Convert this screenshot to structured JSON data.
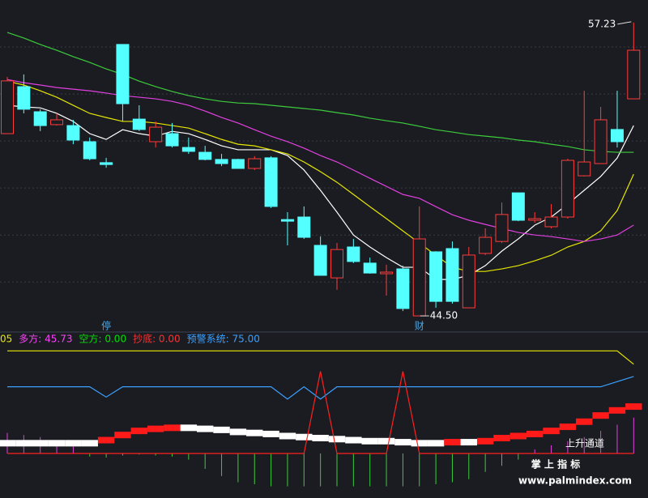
{
  "chart_data": [
    {
      "type": "candlestick",
      "open": [
        52.41,
        54.45,
        53.36,
        52.8,
        52.76,
        52.06,
        51.15,
        56.28,
        53.04,
        52.06,
        52.41,
        51.81,
        51.6,
        51.29,
        51.29,
        50.9,
        51.36,
        48.68,
        48.79,
        47.56,
        46.15,
        47.49,
        46.79,
        46.33,
        46.54,
        44.5,
        47.28,
        47.42,
        44.85,
        47.21,
        47.73,
        49.84,
        48.65,
        48.37,
        48.79,
        50.58,
        51.11,
        52.59,
        53.92
      ],
      "high": [
        54.87,
        54.98,
        53.47,
        53.29,
        53.01,
        52.24,
        51.36,
        56.28,
        53.64,
        52.94,
        52.87,
        52.24,
        51.88,
        51.53,
        51.32,
        51.43,
        51.43,
        49.0,
        49.25,
        47.95,
        47.66,
        47.84,
        47.03,
        46.72,
        46.68,
        49.25,
        47.31,
        47.73,
        47.49,
        48.3,
        49.42,
        49.84,
        49.0,
        49.35,
        51.32,
        54.27,
        53.57,
        54.27,
        57.23
      ],
      "low": [
        52.41,
        53.29,
        52.52,
        52.76,
        51.95,
        51.25,
        50.93,
        52.94,
        52.52,
        51.81,
        51.81,
        51.53,
        51.25,
        51.0,
        50.9,
        50.83,
        49.18,
        47.56,
        47.84,
        46.26,
        45.63,
        46.79,
        46.33,
        45.38,
        44.71,
        44.5,
        44.85,
        45.03,
        44.85,
        47.14,
        47.66,
        48.61,
        48.54,
        48.3,
        48.72,
        50.55,
        51.11,
        51.81,
        53.92
      ],
      "close": [
        54.7,
        53.47,
        52.76,
        53.01,
        52.13,
        51.32,
        51.07,
        53.71,
        52.59,
        52.69,
        51.88,
        51.64,
        51.29,
        51.11,
        50.9,
        51.32,
        49.25,
        48.61,
        47.91,
        46.26,
        47.38,
        46.86,
        46.36,
        46.4,
        44.82,
        47.84,
        45.13,
        45.13,
        47.14,
        47.91,
        48.9,
        48.65,
        48.72,
        48.79,
        51.25,
        51.18,
        53.01,
        52.06,
        56.03
      ],
      "up_color": "#ff3b3b",
      "down_color": "#54ffff",
      "series": [
        {
          "color": "#ffffff",
          "values": [
            53.64,
            53.57,
            53.53,
            53.29,
            52.94,
            52.41,
            52.16,
            52.58,
            52.41,
            52.3,
            52.51,
            52.41,
            52.16,
            51.88,
            51.71,
            51.71,
            51.71,
            51.46,
            50.83,
            49.95,
            49.0,
            48.01,
            47.49,
            47.03,
            46.61,
            46.61,
            46.08,
            46.08,
            46.26,
            46.68,
            47.31,
            47.84,
            48.44,
            48.79,
            49.35,
            49.95,
            50.55,
            51.35,
            52.76
          ]
        },
        {
          "color": "#e6e600",
          "values": [
            54.69,
            54.52,
            54.27,
            53.99,
            53.64,
            53.29,
            53.11,
            52.94,
            52.94,
            52.87,
            52.76,
            52.65,
            52.41,
            52.16,
            51.95,
            51.88,
            51.71,
            51.53,
            51.18,
            50.76,
            50.3,
            49.77,
            49.24,
            48.72,
            48.19,
            47.66,
            47.13,
            46.61,
            46.43,
            46.43,
            46.54,
            46.68,
            46.89,
            47.13,
            47.49,
            47.73,
            48.19,
            49.07,
            50.65
          ]
        },
        {
          "color": "#e040e0",
          "values": [
            54.76,
            54.62,
            54.52,
            54.41,
            54.34,
            54.27,
            54.17,
            54.06,
            53.99,
            53.92,
            53.81,
            53.64,
            53.39,
            53.11,
            52.87,
            52.58,
            52.3,
            52.06,
            51.78,
            51.46,
            51.18,
            50.83,
            50.47,
            50.12,
            49.77,
            49.6,
            49.24,
            48.89,
            48.65,
            48.47,
            48.29,
            48.12,
            48.01,
            47.94,
            47.84,
            47.73,
            47.84,
            48.01,
            48.44
          ]
        },
        {
          "color": "#3ccc3c",
          "values": [
            56.8,
            56.56,
            56.28,
            56.03,
            55.75,
            55.5,
            55.22,
            54.98,
            54.69,
            54.45,
            54.24,
            54.06,
            53.92,
            53.81,
            53.74,
            53.71,
            53.64,
            53.57,
            53.5,
            53.43,
            53.32,
            53.22,
            53.08,
            52.97,
            52.87,
            52.73,
            52.58,
            52.48,
            52.37,
            52.3,
            52.23,
            52.13,
            52.06,
            51.95,
            51.85,
            51.71,
            51.64,
            51.6,
            51.6
          ]
        }
      ],
      "ylim": [
        43.8,
        58.21
      ],
      "grid_levels": [
        56.17,
        54.13,
        52.09,
        50.05,
        48.01,
        45.97
      ],
      "annotations": [
        "57.23",
        "44.50"
      ],
      "markers": [
        {
          "label": "停",
          "at": 6
        },
        {
          "label": "财",
          "at": 25
        }
      ]
    },
    {
      "type": "indicator",
      "legend": [
        {
          "text": "05",
          "color": "#e6e600"
        },
        {
          "text": "多方: 45.73",
          "color": "#ff40ff"
        },
        {
          "text": "空方: 0.00",
          "color": "#00e000"
        },
        {
          "text": "抄底: 0.00",
          "color": "#ff3030"
        },
        {
          "text": "预警系统: 75.00",
          "color": "#3aa0ff"
        }
      ],
      "lines": [
        {
          "color": "#e6e600",
          "values": [
            100,
            100,
            100,
            100,
            100,
            100,
            100,
            100,
            100,
            100,
            100,
            100,
            100,
            100,
            100,
            100,
            100,
            100,
            100,
            100,
            100,
            100,
            100,
            100,
            100,
            100,
            100,
            100,
            100,
            100,
            100,
            100,
            100,
            100,
            100,
            100,
            100,
            100,
            87
          ]
        },
        {
          "color": "#3aa0ff",
          "values": [
            65,
            65,
            65,
            65,
            65,
            65,
            55,
            65,
            65,
            65,
            65,
            65,
            65,
            65,
            65,
            65,
            65,
            53,
            65,
            53,
            65,
            65,
            65,
            65,
            65,
            65,
            65,
            65,
            65,
            65,
            65,
            65,
            65,
            65,
            65,
            65,
            65,
            70,
            75
          ]
        },
        {
          "color": "#ff2020",
          "values": [
            0,
            0,
            0,
            0,
            0,
            0,
            0,
            0,
            0,
            0,
            0,
            0,
            0,
            0,
            0,
            0,
            0,
            0,
            0,
            80,
            0,
            0,
            0,
            0,
            80,
            0,
            0,
            0,
            0,
            0,
            0,
            0,
            0,
            0,
            0,
            0,
            0,
            0,
            0
          ]
        }
      ],
      "histogram": {
        "up_color": "#e040e0",
        "down_color": "#3ccc3c",
        "values": [
          20,
          18,
          16,
          13,
          10,
          -3,
          -4,
          -2,
          -1,
          -2,
          -3,
          -6,
          -15,
          -22,
          -28,
          -30,
          -32,
          -32,
          -32,
          -32,
          -32,
          -32,
          -32,
          -32,
          -32,
          -32,
          -30,
          -28,
          -25,
          -18,
          -12,
          -6,
          4,
          8,
          12,
          16,
          22,
          28,
          35
        ]
      },
      "steps": {
        "up_color": "#ff1a1a",
        "down_color": "#ffffff",
        "values": [
          10,
          10,
          10,
          10,
          10,
          10,
          13,
          18,
          22,
          24,
          25,
          25,
          24,
          23,
          21,
          20,
          19,
          17,
          16,
          15,
          14,
          13,
          12,
          12,
          11,
          10,
          10,
          11,
          11,
          12,
          15,
          17,
          19,
          22,
          26,
          31,
          37,
          42,
          45.73
        ]
      },
      "ylim": [
        -43.4,
        118.4
      ],
      "note": "上升通道"
    }
  ],
  "watermark": {
    "title": "掌 上 指 标",
    "url": "www.palmindex.com"
  }
}
